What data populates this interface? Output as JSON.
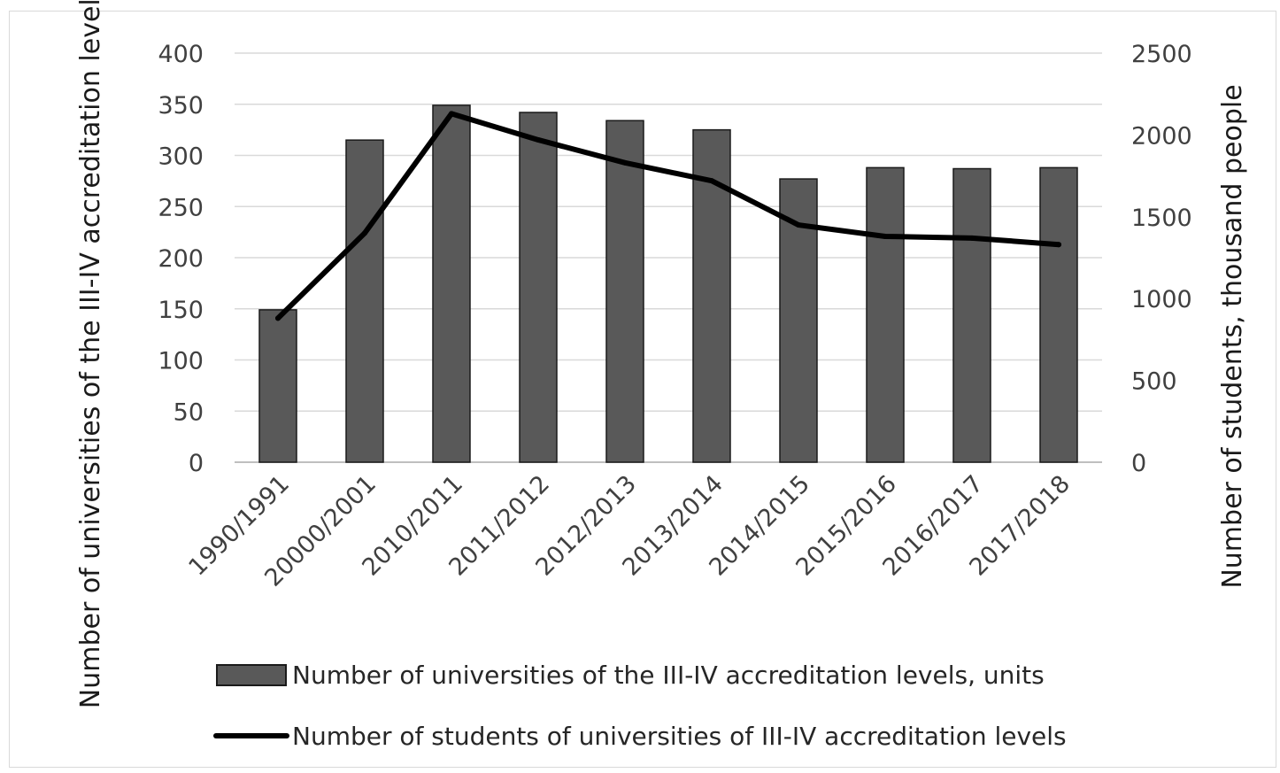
{
  "chart_data": {
    "type": "bar",
    "categories": [
      "1990/1991",
      "20000/2001",
      "2010/2011",
      "2011/2012",
      "2012/2013",
      "2013/2014",
      "2014/2015",
      "2015/2016",
      "2016/2017",
      "2017/2018"
    ],
    "series": [
      {
        "name": "Number of universities of the III-IV accreditation levels, units",
        "type": "bar",
        "axis": "left",
        "values": [
          149,
          315,
          349,
          342,
          334,
          325,
          277,
          288,
          287,
          288
        ]
      },
      {
        "name": "Number of students of universities of III-IV accreditation levels",
        "type": "line",
        "axis": "right",
        "values": [
          880,
          1400,
          2130,
          1970,
          1830,
          1720,
          1450,
          1380,
          1370,
          1330
        ]
      }
    ],
    "ylabel": "Number of universities of the III-IV accreditation levels, units",
    "ylim": [
      0,
      400
    ],
    "yticks": [
      "0",
      "50",
      "100",
      "150",
      "200",
      "250",
      "300",
      "350",
      "400"
    ],
    "y2label": "Number of students, thousand people",
    "y2lim": [
      0,
      2500
    ],
    "y2ticks": [
      "0",
      "500",
      "1000",
      "1500",
      "2000",
      "2500"
    ],
    "grid": true,
    "legend_position": "bottom",
    "colors": {
      "bar": "#595959",
      "line": "#000000",
      "grid": "#d9d9d9"
    }
  }
}
